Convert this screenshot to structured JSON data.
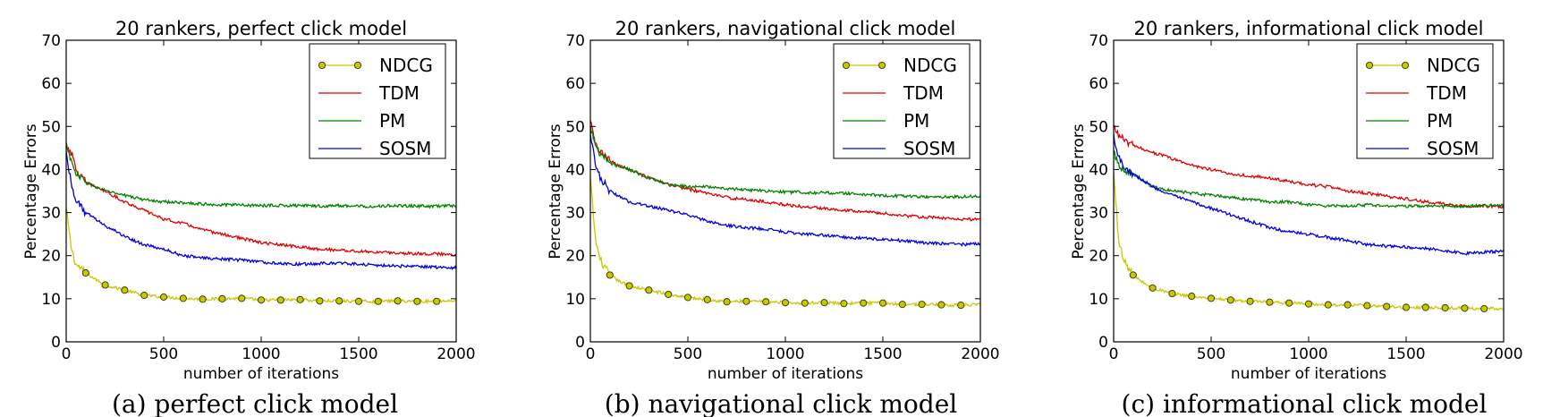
{
  "chart_data": [
    {
      "type": "line",
      "title": "20 rankers, perfect click model",
      "caption": "(a) perfect click model",
      "xlabel": "number of iterations",
      "ylabel": "Percentage Errors",
      "xlim": [
        0,
        2000
      ],
      "ylim": [
        0,
        70
      ],
      "xticks": [
        0,
        500,
        1000,
        1500,
        2000
      ],
      "yticks": [
        0,
        10,
        20,
        30,
        40,
        50,
        60,
        70
      ],
      "legend_position": "top-right",
      "series": [
        {
          "name": "NDCG",
          "color": "#c8c800",
          "marker": "circle",
          "marker_every": 100,
          "x": [
            0,
            25,
            50,
            100,
            150,
            200,
            300,
            400,
            500,
            600,
            700,
            800,
            900,
            1000,
            1100,
            1200,
            1300,
            1400,
            1500,
            1600,
            1700,
            1800,
            1900,
            2000
          ],
          "y": [
            31,
            22,
            18,
            16,
            14.5,
            13.2,
            12,
            10.8,
            10.4,
            10.1,
            9.9,
            10,
            10.1,
            9.7,
            9.7,
            9.8,
            9.5,
            9.5,
            9.4,
            9.4,
            9.5,
            9.4,
            9.4,
            9.6
          ]
        },
        {
          "name": "TDM",
          "color": "#e00000",
          "marker": "none",
          "x": [
            0,
            25,
            50,
            100,
            200,
            300,
            400,
            500,
            600,
            700,
            800,
            900,
            1000,
            1100,
            1200,
            1300,
            1400,
            1500,
            1600,
            1700,
            1800,
            1900,
            2000
          ],
          "y": [
            46,
            44,
            40,
            37,
            35,
            32.5,
            30.5,
            28.5,
            27.5,
            26,
            25,
            24,
            23,
            22.5,
            22,
            21.5,
            21.3,
            21,
            20.8,
            20.6,
            20.5,
            20.4,
            20.3
          ]
        },
        {
          "name": "PM",
          "color": "#008000",
          "marker": "none",
          "x": [
            0,
            25,
            50,
            100,
            200,
            300,
            400,
            500,
            600,
            700,
            800,
            900,
            1000,
            1100,
            1200,
            1300,
            1400,
            1500,
            1600,
            1700,
            1800,
            1900,
            2000
          ],
          "y": [
            46,
            42,
            39,
            37,
            35,
            34,
            33,
            32.5,
            32.3,
            32,
            31.8,
            31.8,
            31.6,
            31.7,
            31.6,
            31.5,
            31.6,
            31.5,
            31.5,
            31.6,
            31.5,
            31.5,
            31.6
          ]
        },
        {
          "name": "SOSM",
          "color": "#0000dd",
          "marker": "none",
          "x": [
            0,
            25,
            50,
            100,
            200,
            300,
            400,
            500,
            600,
            700,
            800,
            900,
            1000,
            1100,
            1200,
            1300,
            1400,
            1500,
            1600,
            1700,
            1800,
            1900,
            2000
          ],
          "y": [
            44,
            37,
            33,
            30,
            27,
            24.5,
            22.5,
            21.5,
            20,
            19.5,
            19.2,
            19,
            18.5,
            18.2,
            18,
            18.2,
            18.3,
            18,
            17.8,
            17.6,
            17.5,
            17.3,
            17.2
          ]
        }
      ]
    },
    {
      "type": "line",
      "title": "20 rankers, navigational click model",
      "caption": "(b) navigational click model",
      "xlabel": "number of iterations",
      "ylabel": "Percentage Errors",
      "xlim": [
        0,
        2000
      ],
      "ylim": [
        0,
        70
      ],
      "xticks": [
        0,
        500,
        1000,
        1500,
        2000
      ],
      "yticks": [
        0,
        10,
        20,
        30,
        40,
        50,
        60,
        70
      ],
      "legend_position": "top-right",
      "series": [
        {
          "name": "NDCG",
          "color": "#c8c800",
          "marker": "circle",
          "marker_every": 100,
          "x": [
            0,
            25,
            50,
            100,
            150,
            200,
            300,
            400,
            500,
            600,
            700,
            800,
            900,
            1000,
            1100,
            1200,
            1300,
            1400,
            1500,
            1600,
            1700,
            1800,
            1900,
            2000
          ],
          "y": [
            38,
            24,
            19,
            15.5,
            14,
            13,
            12,
            11,
            10.3,
            9.8,
            9.3,
            9.4,
            9.3,
            9.1,
            9,
            9.1,
            8.9,
            9,
            9,
            8.7,
            8.7,
            8.6,
            8.5,
            8.6
          ]
        },
        {
          "name": "TDM",
          "color": "#e00000",
          "marker": "none",
          "x": [
            0,
            25,
            50,
            100,
            200,
            300,
            400,
            500,
            600,
            700,
            800,
            900,
            1000,
            1100,
            1200,
            1300,
            1400,
            1500,
            1600,
            1700,
            1800,
            1900,
            2000
          ],
          "y": [
            51,
            46,
            44,
            42,
            40,
            38,
            36.5,
            35.5,
            34.5,
            33.5,
            33,
            32.5,
            31.8,
            31.3,
            31,
            30.6,
            30.3,
            29.8,
            29.3,
            29,
            28.7,
            28.5,
            28.4
          ]
        },
        {
          "name": "PM",
          "color": "#008000",
          "marker": "none",
          "x": [
            0,
            25,
            50,
            100,
            200,
            300,
            400,
            500,
            600,
            700,
            800,
            900,
            1000,
            1100,
            1200,
            1300,
            1400,
            1500,
            1600,
            1700,
            1800,
            1900,
            2000
          ],
          "y": [
            50,
            46,
            43.5,
            41.5,
            40,
            38,
            36.5,
            36,
            36,
            35.5,
            35.3,
            35,
            34.8,
            34.7,
            34.6,
            34.5,
            34.2,
            34,
            33.8,
            33.7,
            33.6,
            33.7,
            33.7
          ]
        },
        {
          "name": "SOSM",
          "color": "#0000dd",
          "marker": "none",
          "x": [
            0,
            25,
            50,
            100,
            200,
            300,
            400,
            500,
            600,
            700,
            800,
            900,
            1000,
            1100,
            1200,
            1300,
            1400,
            1500,
            1600,
            1700,
            1800,
            1900,
            2000
          ],
          "y": [
            48,
            42,
            38,
            35,
            32.5,
            31.5,
            30.5,
            29.5,
            28,
            27,
            26.5,
            26.2,
            25.5,
            25,
            24.8,
            24.3,
            24,
            23.8,
            23.5,
            23,
            22.8,
            22.6,
            22.7
          ]
        }
      ]
    },
    {
      "type": "line",
      "title": "20 rankers, informational click model",
      "caption": "(c) informational click model",
      "xlabel": "number of iterations",
      "ylabel": "Percentage Errors",
      "xlim": [
        0,
        2000
      ],
      "ylim": [
        0,
        70
      ],
      "xticks": [
        0,
        500,
        1000,
        1500,
        2000
      ],
      "yticks": [
        0,
        10,
        20,
        30,
        40,
        50,
        60,
        70
      ],
      "legend_position": "top-right",
      "series": [
        {
          "name": "NDCG",
          "color": "#c8c800",
          "marker": "circle",
          "marker_every": 100,
          "x": [
            0,
            25,
            50,
            100,
            150,
            200,
            300,
            400,
            500,
            600,
            700,
            800,
            900,
            1000,
            1100,
            1200,
            1300,
            1400,
            1500,
            1600,
            1700,
            1800,
            1900,
            2000
          ],
          "y": [
            39,
            24,
            19,
            15.5,
            13.8,
            12.5,
            11.2,
            10.6,
            10.1,
            9.7,
            9.4,
            9.2,
            9,
            8.8,
            8.6,
            8.6,
            8.4,
            8.2,
            8,
            8,
            7.9,
            7.8,
            7.7,
            7.7
          ]
        },
        {
          "name": "TDM",
          "color": "#e00000",
          "marker": "none",
          "x": [
            0,
            25,
            50,
            100,
            200,
            300,
            400,
            500,
            600,
            700,
            800,
            900,
            1000,
            1100,
            1200,
            1300,
            1400,
            1500,
            1600,
            1700,
            1800,
            1900,
            2000
          ],
          "y": [
            50,
            48,
            47,
            45.5,
            44,
            42.5,
            41,
            40,
            39,
            38.5,
            38,
            37.2,
            36.5,
            36,
            35,
            34.5,
            33.8,
            33.2,
            32.5,
            32,
            31.5,
            31.6,
            31.2
          ]
        },
        {
          "name": "PM",
          "color": "#008000",
          "marker": "none",
          "x": [
            0,
            25,
            50,
            100,
            200,
            300,
            400,
            500,
            600,
            700,
            800,
            900,
            1000,
            1100,
            1200,
            1300,
            1400,
            1500,
            1600,
            1700,
            1800,
            1900,
            2000
          ],
          "y": [
            44,
            41,
            40,
            39,
            36,
            35,
            34.5,
            34,
            33.5,
            33,
            32.5,
            32.5,
            31.8,
            31.5,
            31.5,
            31.8,
            31.6,
            31.5,
            31.5,
            31.4,
            31.5,
            31.6,
            31.7
          ]
        },
        {
          "name": "SOSM",
          "color": "#0000dd",
          "marker": "none",
          "x": [
            0,
            25,
            50,
            100,
            200,
            300,
            400,
            500,
            600,
            700,
            800,
            900,
            1000,
            1100,
            1200,
            1300,
            1400,
            1500,
            1600,
            1700,
            1800,
            1900,
            2000
          ],
          "y": [
            48,
            43,
            41,
            39,
            36,
            34,
            32.5,
            31,
            29.5,
            28,
            26.5,
            25.5,
            25,
            24.2,
            23.5,
            22.6,
            22.2,
            22,
            21.7,
            21.2,
            20.5,
            20.8,
            21
          ]
        }
      ]
    }
  ]
}
